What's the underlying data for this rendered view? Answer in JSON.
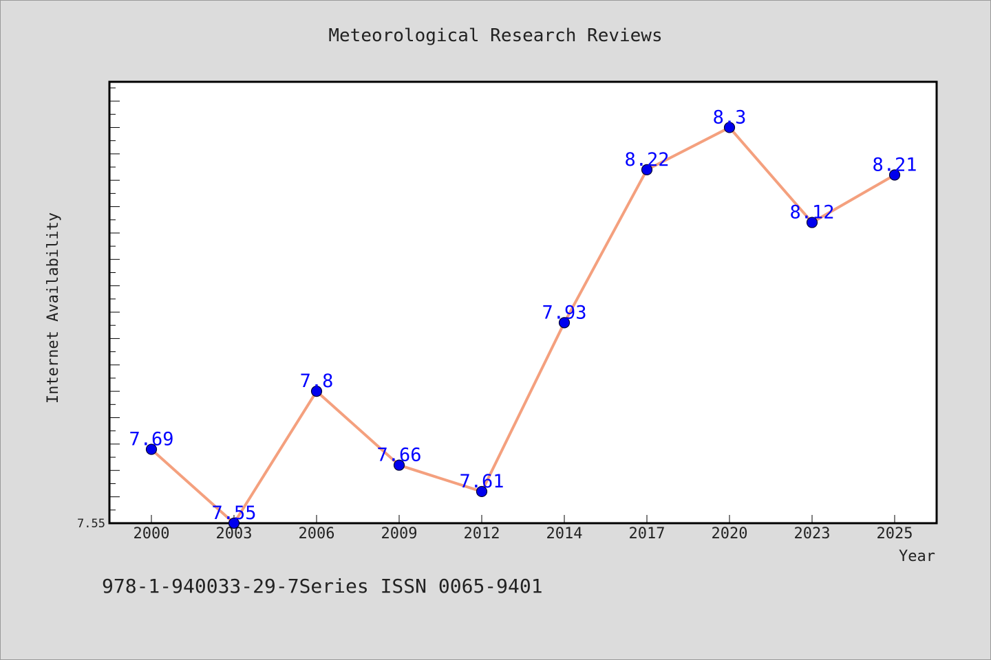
{
  "chart_data": {
    "type": "line",
    "title": "Meteorological Research Reviews",
    "xlabel": "Year",
    "ylabel": "Internet Availability",
    "categories": [
      "2000",
      "2003",
      "2006",
      "2009",
      "2012",
      "2014",
      "2017",
      "2020",
      "2023",
      "2025"
    ],
    "series": [
      {
        "values": [
          7.69,
          7.55,
          7.8,
          7.66,
          7.61,
          7.93,
          8.22,
          8.3,
          8.12,
          8.21
        ]
      }
    ],
    "data_labels": [
      "7.69",
      "7.55",
      "7.8",
      "7.66",
      "7.61",
      "7.93",
      "8.22",
      "8.3",
      "8.12",
      "8.21"
    ],
    "y_tick_labels": [
      "7.55"
    ],
    "ylim": [
      7.55,
      8.3866
    ],
    "grid": false,
    "legend": "none",
    "colors": {
      "line": "#f4a07e",
      "marker": "#0000ee",
      "marker_stroke": "#000033",
      "data_label": "#0000ff",
      "background": "#dcdcdc",
      "plot_background": "#ffffff"
    }
  },
  "footer": {
    "text": "978-1-940033-29-7Series ISSN 0065-9401"
  }
}
